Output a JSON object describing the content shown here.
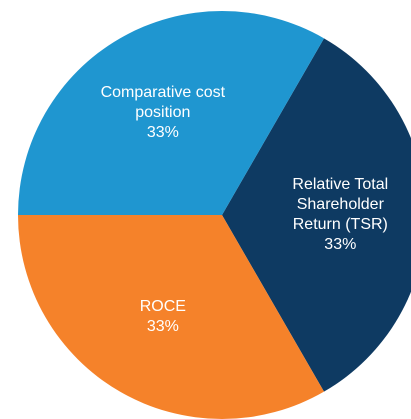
{
  "chart_data": {
    "type": "pie",
    "categories": [
      "Relative Total Shareholder Return (TSR)",
      "ROCE",
      "Comparative cost position"
    ],
    "values": [
      33,
      33,
      33
    ],
    "value_labels": [
      "33%",
      "33%",
      "33%"
    ],
    "colors": [
      "#0e3a62",
      "#f5822a",
      "#1f96d0"
    ]
  }
}
